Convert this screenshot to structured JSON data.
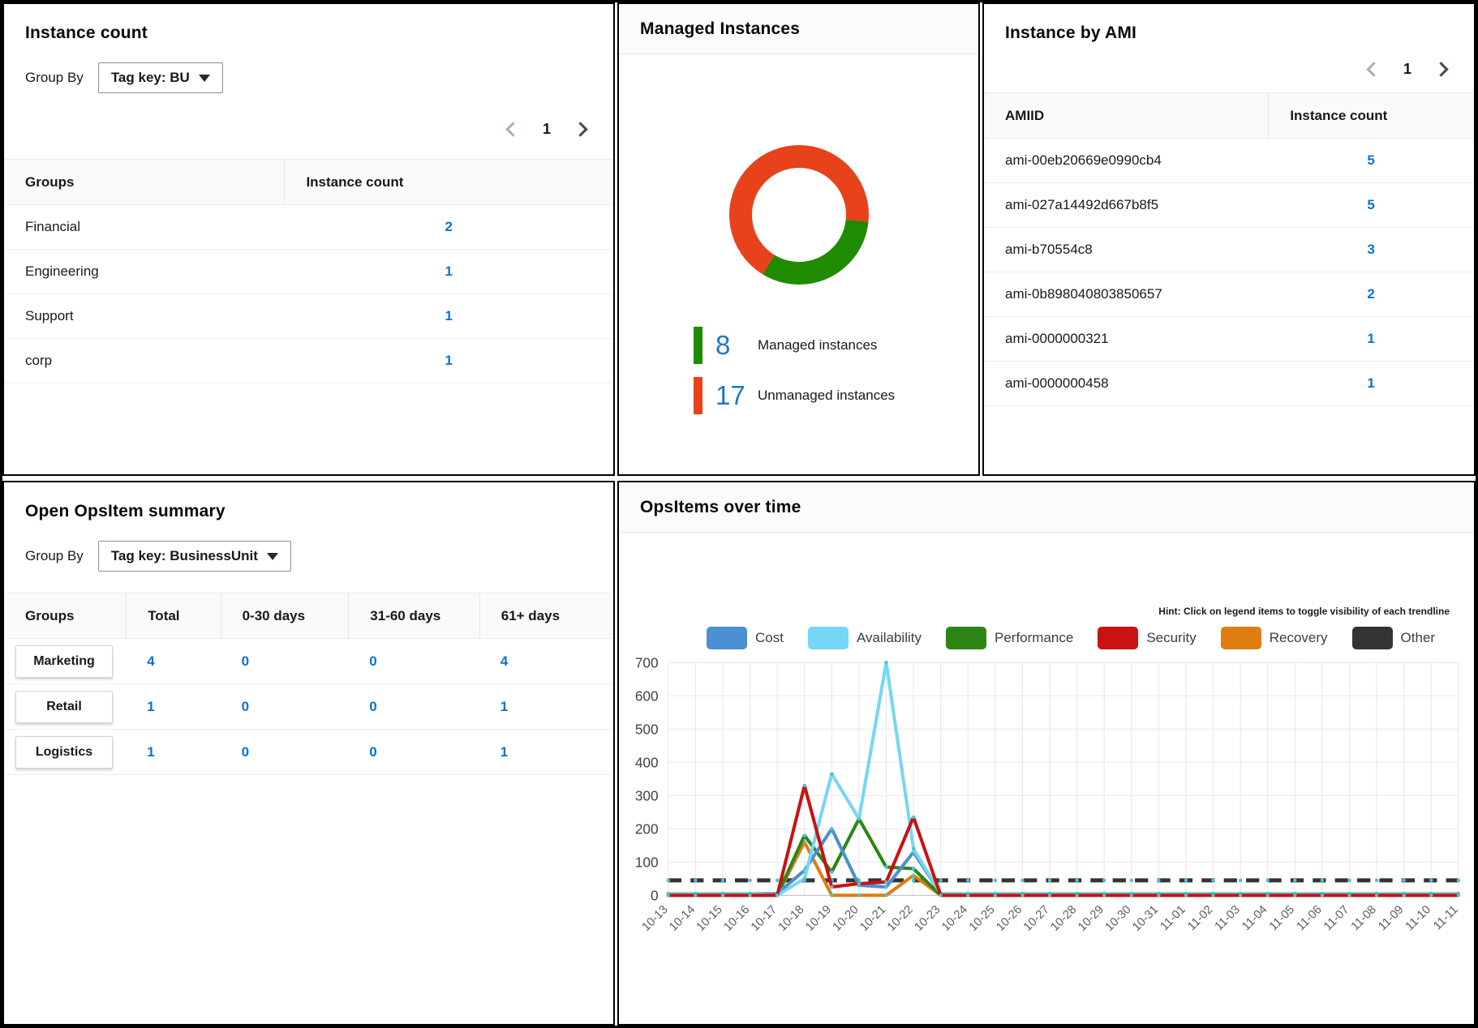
{
  "instance_count_panel": {
    "title": "Instance count",
    "group_by_label": "Group By",
    "group_by_value": "Tag key: BU",
    "page": "1",
    "columns": {
      "groups": "Groups",
      "count": "Instance count"
    },
    "rows": [
      {
        "group": "Financial",
        "count": "2"
      },
      {
        "group": "Engineering",
        "count": "1"
      },
      {
        "group": "Support",
        "count": "1"
      },
      {
        "group": "corp",
        "count": "1"
      }
    ]
  },
  "managed_instances_panel": {
    "title": "Managed Instances",
    "donut": {
      "start_deg": 96,
      "values": [
        8,
        17
      ],
      "colors": [
        "#1f8b00",
        "#e8421c"
      ]
    },
    "legend": [
      {
        "value": "8",
        "label": "Managed instances",
        "color": "#1f8b00"
      },
      {
        "value": "17",
        "label": "Unmanaged instances",
        "color": "#e8421c"
      }
    ]
  },
  "instance_by_ami_panel": {
    "title": "Instance by AMI",
    "page": "1",
    "columns": {
      "ami": "AMIID",
      "count": "Instance count"
    },
    "rows": [
      {
        "ami": "ami-00eb20669e0990cb4",
        "count": "5"
      },
      {
        "ami": "ami-027a14492d667b8f5",
        "count": "5"
      },
      {
        "ami": "ami-b70554c8",
        "count": "3"
      },
      {
        "ami": "ami-0b898040803850657",
        "count": "2"
      },
      {
        "ami": "ami-0000000321",
        "count": "1"
      },
      {
        "ami": "ami-0000000458",
        "count": "1"
      }
    ]
  },
  "opsitem_summary_panel": {
    "title": "Open OpsItem summary",
    "group_by_label": "Group By",
    "group_by_value": "Tag key: BusinessUnit",
    "columns": [
      "Groups",
      "Total",
      "0-30 days",
      "31-60 days",
      "61+ days"
    ],
    "rows": [
      {
        "group": "Marketing",
        "total": "4",
        "d0_30": "0",
        "d31_60": "0",
        "d61_plus": "4"
      },
      {
        "group": "Retail",
        "total": "1",
        "d0_30": "0",
        "d31_60": "0",
        "d61_plus": "1"
      },
      {
        "group": "Logistics",
        "total": "1",
        "d0_30": "0",
        "d31_60": "0",
        "d61_plus": "1"
      }
    ]
  },
  "opsitems_over_time_panel": {
    "title": "OpsItems over time",
    "hint": "Hint: Click on legend items to toggle visibility of each trendline"
  },
  "chart_data": {
    "type": "line",
    "title": "OpsItems over time",
    "x": [
      "10-13",
      "10-14",
      "10-15",
      "10-16",
      "10-17",
      "10-18",
      "10-19",
      "10-20",
      "10-21",
      "10-22",
      "10-23",
      "10-24",
      "10-25",
      "10-26",
      "10-27",
      "10-28",
      "10-29",
      "10-30",
      "10-31",
      "11-01",
      "11-02",
      "11-03",
      "11-04",
      "11-05",
      "11-06",
      "11-07",
      "11-08",
      "11-09",
      "11-10",
      "11-11"
    ],
    "ylim": [
      0,
      700
    ],
    "ytick_interval": 100,
    "grid": true,
    "legend_position": "top",
    "marker_color": "#4ec4c4",
    "series": [
      {
        "name": "Cost",
        "color": "#4a90d2",
        "dashed": false,
        "values": [
          5,
          5,
          5,
          5,
          5,
          75,
          200,
          30,
          25,
          130,
          5,
          5,
          5,
          5,
          5,
          5,
          5,
          5,
          5,
          5,
          5,
          5,
          5,
          5,
          5,
          5,
          5,
          5,
          5,
          5
        ]
      },
      {
        "name": "Availability",
        "color": "#76d6f5",
        "dashed": false,
        "values": [
          5,
          5,
          5,
          5,
          0,
          50,
          365,
          230,
          700,
          140,
          5,
          5,
          5,
          5,
          5,
          5,
          5,
          5,
          5,
          5,
          5,
          5,
          5,
          5,
          5,
          5,
          5,
          5,
          5,
          5
        ]
      },
      {
        "name": "Performance",
        "color": "#2d8515",
        "dashed": false,
        "values": [
          0,
          0,
          0,
          0,
          0,
          180,
          70,
          230,
          85,
          80,
          0,
          0,
          0,
          0,
          0,
          0,
          0,
          0,
          0,
          0,
          0,
          0,
          0,
          0,
          0,
          0,
          0,
          0,
          0,
          0
        ]
      },
      {
        "name": "Security",
        "color": "#c91212",
        "dashed": false,
        "values": [
          0,
          0,
          0,
          0,
          0,
          330,
          25,
          35,
          40,
          235,
          0,
          0,
          0,
          0,
          0,
          0,
          0,
          0,
          0,
          0,
          0,
          0,
          0,
          0,
          0,
          0,
          0,
          0,
          0,
          0
        ]
      },
      {
        "name": "Recovery",
        "color": "#df7d11",
        "dashed": false,
        "values": [
          0,
          0,
          0,
          0,
          0,
          160,
          0,
          0,
          0,
          60,
          0,
          0,
          0,
          0,
          0,
          0,
          0,
          0,
          0,
          0,
          0,
          0,
          0,
          0,
          0,
          0,
          0,
          0,
          0,
          0
        ]
      },
      {
        "name": "Other",
        "color": "#343434",
        "dashed": true,
        "values": [
          45,
          45,
          45,
          45,
          45,
          45,
          45,
          45,
          45,
          45,
          45,
          45,
          45,
          45,
          45,
          45,
          45,
          45,
          45,
          45,
          45,
          45,
          45,
          45,
          45,
          45,
          45,
          45,
          45,
          45
        ]
      }
    ]
  }
}
